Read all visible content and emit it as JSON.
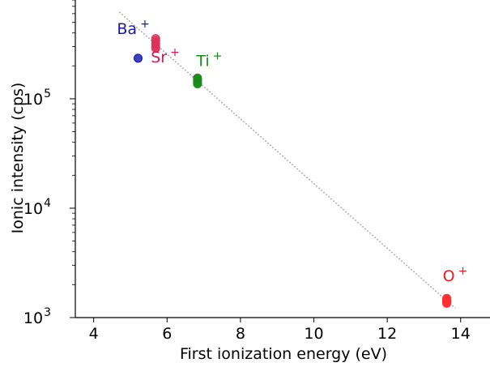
{
  "chart_data": {
    "type": "scatter",
    "title": "",
    "xlabel": "First ionization energy (eV)",
    "ylabel": "Ionic intensity (cps)",
    "xlim": [
      3.5,
      14.8
    ],
    "ylim": [
      1000,
      800000
    ],
    "yscale": "log",
    "grid": false,
    "x_ticks": [
      4,
      6,
      8,
      10,
      12,
      14
    ],
    "x_tick_labels": [
      "4",
      "6",
      "8",
      "10",
      "12",
      "14"
    ],
    "y_ticks": [
      {
        "value": 1000,
        "base": "10",
        "exp": "3"
      },
      {
        "value": 10000,
        "base": "10",
        "exp": "4"
      },
      {
        "value": 100000,
        "base": "10",
        "exp": "5"
      }
    ],
    "series": [
      {
        "label": "Ba",
        "charge": "+",
        "color": "#1010b0",
        "label_color": "#1a1aa8",
        "points": [
          [
            5.21,
            235000
          ]
        ],
        "label_x": 5.08,
        "label_y": 390000
      },
      {
        "label": "Sr",
        "charge": "+",
        "color": "#e0305a",
        "label_color": "#d01c50",
        "points": [
          [
            5.69,
            340000
          ],
          [
            5.69,
            320000
          ],
          [
            5.69,
            300000
          ],
          [
            5.69,
            290000
          ],
          [
            5.69,
            355000
          ]
        ],
        "label_x": 5.95,
        "label_y": 215000
      },
      {
        "label": "Ti",
        "charge": "+",
        "color": "#1c8a1c",
        "label_color": "#1a8a1a",
        "points": [
          [
            6.83,
            155000
          ],
          [
            6.83,
            147000
          ],
          [
            6.83,
            140000
          ],
          [
            6.83,
            137000
          ],
          [
            6.83,
            151000
          ]
        ],
        "label_x": 7.15,
        "label_y": 200000
      },
      {
        "label": "O",
        "charge": "+",
        "color": "#ff3030",
        "label_color": "#ee1c1c",
        "points": [
          [
            13.62,
            1500
          ],
          [
            13.62,
            1430
          ],
          [
            13.62,
            1380
          ],
          [
            13.62,
            1350
          ],
          [
            13.62,
            1470
          ]
        ],
        "label_x": 13.85,
        "label_y": 2150
      }
    ],
    "fit_line": {
      "style": "dotted",
      "color": "#999999",
      "x": [
        4.7,
        13.85
      ],
      "y": [
        620000,
        1220
      ]
    }
  }
}
